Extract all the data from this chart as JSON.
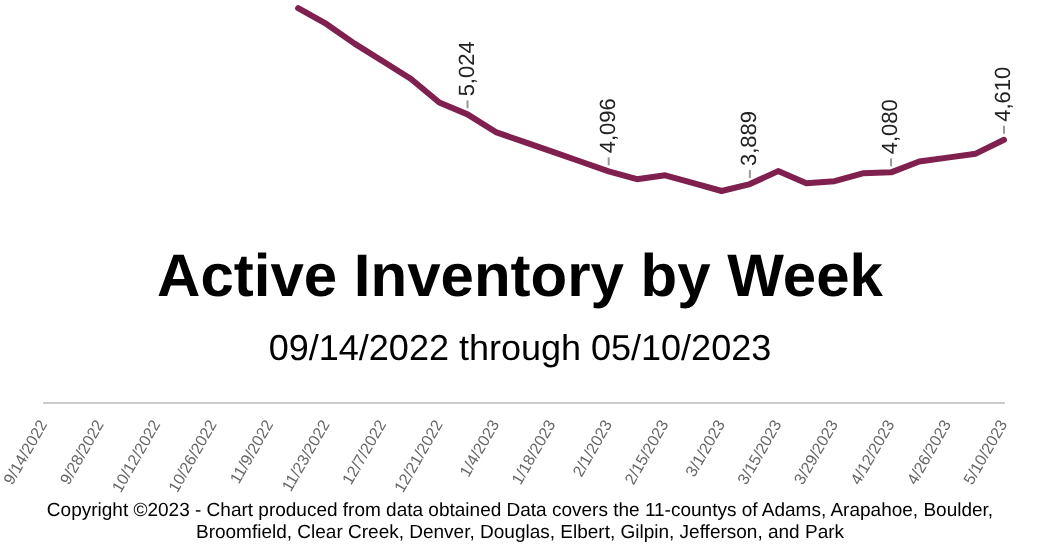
{
  "chart_data": {
    "type": "line",
    "title": "Active Inventory by Week",
    "subtitle": "09/14/2022 through 05/10/2023",
    "annotations": [
      "Copyright ©2023 - Chart produced from data obtained Data covers the 11-countys of Adams, Arapahoe, Boulder, Broomfield, Clear Creek, Denver, Douglas, Elbert, Gilpin, Jefferson, and Park"
    ],
    "categories": [
      "9/14/2022",
      null,
      "9/28/2022",
      null,
      "10/12/2022",
      null,
      "10/26/2022",
      null,
      "11/9/2022",
      null,
      "11/23/2022",
      null,
      "12/7/2022",
      null,
      "12/21/2022",
      null,
      "1/4/2023",
      null,
      "1/18/2023",
      null,
      "2/1/2023",
      null,
      "2/15/2023",
      null,
      "3/1/2023",
      null,
      "3/15/2023",
      null,
      "3/29/2023",
      null,
      "4/12/2023",
      null,
      "4/26/2023",
      null,
      "5/10/2023"
    ],
    "series": [
      {
        "color": "#80204f",
        "values": [
          null,
          null,
          null,
          null,
          null,
          null,
          null,
          null,
          null,
          6752,
          6496,
          6176,
          5888,
          5600,
          5216,
          5024,
          4736,
          4576,
          4416,
          4256,
          4096,
          3968,
          4032,
          3904,
          3776,
          3889,
          4100,
          3904,
          3936,
          4064,
          4080,
          4256,
          4320,
          4384,
          4610
        ],
        "value_labels": [
          null,
          null,
          null,
          null,
          null,
          null,
          null,
          null,
          null,
          null,
          null,
          null,
          null,
          null,
          null,
          "5,024",
          null,
          null,
          null,
          null,
          "4,096",
          null,
          null,
          null,
          null,
          "3,889",
          null,
          null,
          null,
          null,
          "4,080",
          null,
          null,
          null,
          "4,610"
        ]
      }
    ],
    "tick_labels": "x",
    "grid": false,
    "legend": false,
    "marker": "none",
    "line_style": "solid"
  }
}
